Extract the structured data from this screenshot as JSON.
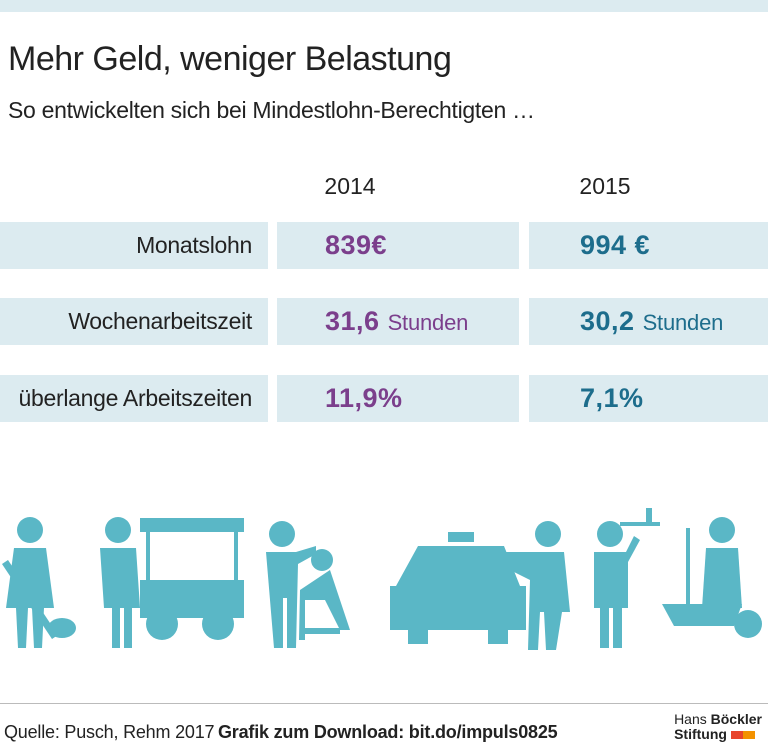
{
  "header": {
    "title": "Mehr Geld, weniger Belastung",
    "subtitle": "So entwickelten sich bei Mindestlohn-Berechtigten …"
  },
  "table": {
    "columns": [
      "2014",
      "2015"
    ],
    "rows": [
      {
        "label": "Monatslohn",
        "cells": [
          {
            "value": "839€"
          },
          {
            "value": "994 €"
          }
        ]
      },
      {
        "label": "Wochenarbeitszeit",
        "cells": [
          {
            "value": "31,6",
            "unit": "Stunden"
          },
          {
            "value": "30,2",
            "unit": "Stunden"
          }
        ]
      },
      {
        "label": "überlange Arbeitszeiten",
        "cells": [
          {
            "value": "11,9%"
          },
          {
            "value": "7,1%"
          }
        ]
      }
    ]
  },
  "footer": {
    "source": "Quelle: Pusch, Rehm 2017",
    "download": "Grafik zum Download: bit.do/impuls0825",
    "logo": {
      "line1_regular": "Hans",
      "line1_bold": "Böckler",
      "line2": "Stiftung"
    }
  }
}
